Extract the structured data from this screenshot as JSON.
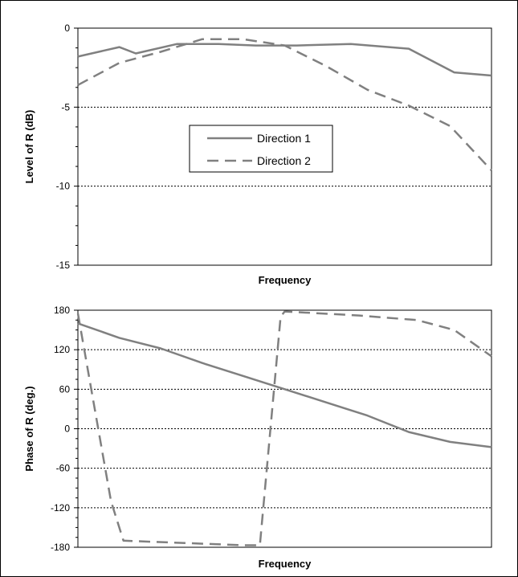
{
  "chart_data": [
    {
      "type": "line",
      "title": "",
      "xlabel": "Frequency",
      "ylabel": "Level of R (dB)",
      "ylim": [
        -15,
        0
      ],
      "yticks": [
        0,
        -5,
        -10,
        -15
      ],
      "xlim": [
        0,
        10
      ],
      "gridlines_y": [
        -5,
        -10
      ],
      "legend": {
        "placement": "center",
        "entries": [
          "Direction 1",
          "Direction 2"
        ]
      },
      "series": [
        {
          "name": "Direction 1",
          "style": "solid",
          "color": "#808080",
          "x": [
            0,
            1,
            1.4,
            2.4,
            3.4,
            4.3,
            5.3,
            6.6,
            8.0,
            9.1,
            10
          ],
          "y": [
            -1.8,
            -1.2,
            -1.6,
            -1.0,
            -1.0,
            -1.1,
            -1.1,
            -1.0,
            -1.3,
            -2.8,
            -3.0
          ]
        },
        {
          "name": "Direction 2",
          "style": "dashed",
          "color": "#808080",
          "x": [
            0,
            1,
            2,
            3,
            4,
            5,
            6,
            7,
            8,
            9,
            10
          ],
          "y": [
            -3.6,
            -2.2,
            -1.5,
            -0.7,
            -0.7,
            -1.1,
            -2.4,
            -3.9,
            -4.9,
            -6.2,
            -9.0
          ]
        }
      ]
    },
    {
      "type": "line",
      "title": "",
      "xlabel": "Frequency",
      "ylabel": "Phase of R (deg.)",
      "ylim": [
        -180,
        180
      ],
      "yticks": [
        180,
        120,
        60,
        0,
        -60,
        -120,
        -180
      ],
      "xlim": [
        0,
        10
      ],
      "gridlines_y": [
        120,
        60,
        0,
        -60,
        -120
      ],
      "series": [
        {
          "name": "Direction 1",
          "style": "solid",
          "color": "#808080",
          "x": [
            0,
            1,
            2,
            3,
            4,
            5,
            6,
            7,
            8,
            9,
            10
          ],
          "y": [
            160,
            138,
            122,
            100,
            80,
            60,
            40,
            20,
            -5,
            -20,
            -28
          ]
        },
        {
          "name": "Direction 2",
          "style": "dashed",
          "color": "#808080",
          "x": [
            0,
            0.8,
            1.1,
            4.0,
            4.4,
            4.9,
            5.0,
            6.8,
            8.2,
            9.1,
            10
          ],
          "y": [
            175,
            -110,
            -170,
            -177,
            -177,
            170,
            178,
            172,
            165,
            150,
            110
          ]
        }
      ]
    }
  ]
}
